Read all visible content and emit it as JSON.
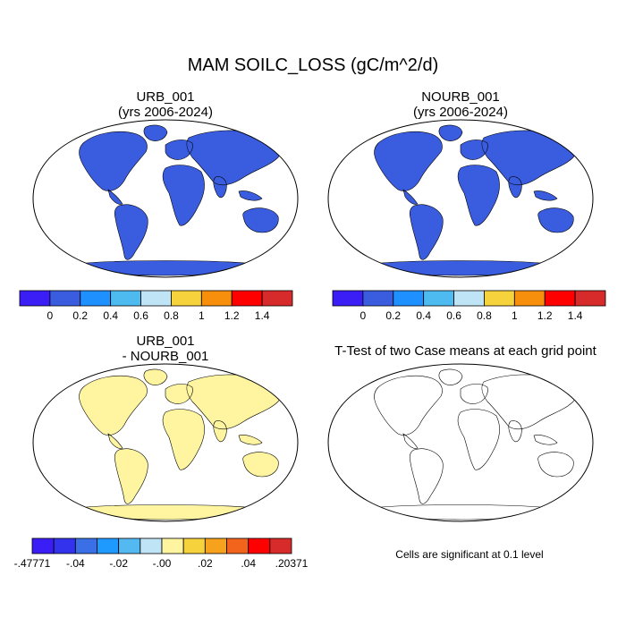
{
  "figure": {
    "title": "MAM SOILC_LOSS (gC/m^2/d)",
    "note": "Cells are significant at 0.1 level"
  },
  "panels": {
    "urb": {
      "line1": "URB_001",
      "line2": "(yrs 2006-2024)"
    },
    "nourb": {
      "line1": "NOURB_001",
      "line2": "(yrs 2006-2024)"
    },
    "diff": {
      "line1": "URB_001",
      "line2": "- NOURB_001"
    },
    "ttest": {
      "line1": "T-Test of two Case means at each grid point"
    }
  },
  "colorbars": {
    "main": {
      "colors": [
        "#3b1ef5",
        "#3a5de0",
        "#1e90ff",
        "#4dbbf0",
        "#bfe4f5",
        "#f6d23c",
        "#f78e0c",
        "#ff0000",
        "#d72a2a"
      ],
      "labels": [
        "0",
        "0.2",
        "0.4",
        "0.6",
        "0.8",
        "1",
        "1.2",
        "1.4"
      ]
    },
    "diff": {
      "colors": [
        "#3b1ef5",
        "#3333ee",
        "#3a6fe6",
        "#1e9aff",
        "#53b9f0",
        "#bfe4f5",
        "#fff5a0",
        "#f6d23c",
        "#f7a21c",
        "#f2631b",
        "#ff0000",
        "#d72a2a"
      ],
      "labels": [
        "-.47771",
        "-.04",
        "-.02",
        "-.00",
        ".02",
        ".04",
        ".20371"
      ]
    }
  },
  "map_fills": {
    "ocean": "#ffffff",
    "land_base": "#3a5de0",
    "diff_land_base": "#fff5a0",
    "significant": "#ff0000"
  }
}
